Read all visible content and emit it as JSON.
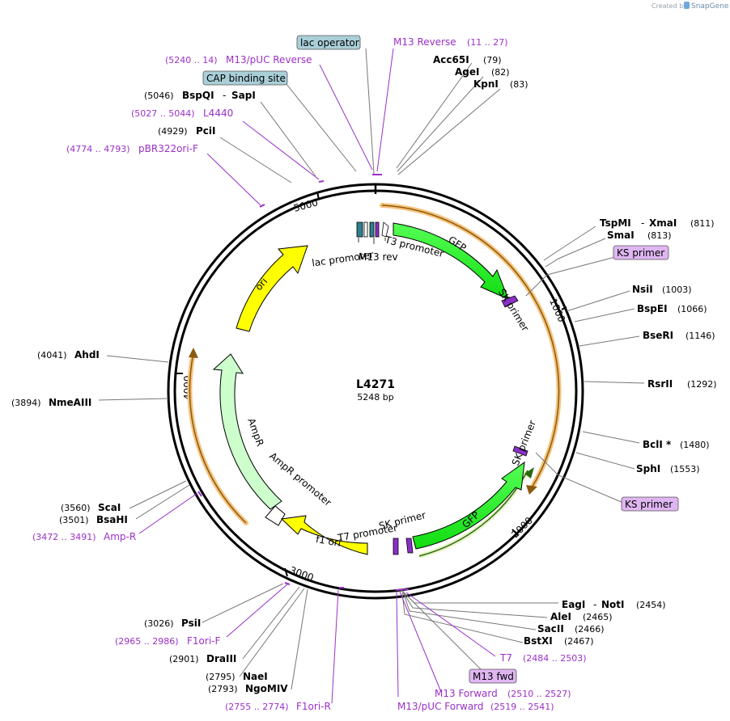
{
  "credit": {
    "prefix": "Created by",
    "brand": "SnapGene"
  },
  "plasmid": {
    "name": "L4271",
    "length_label": "5248 bp"
  },
  "ticks": [
    "1000",
    "2000",
    "3000",
    "4000",
    "5000"
  ],
  "enzymes": [
    {
      "name": "Acc65I",
      "pos": "(79)"
    },
    {
      "name": "AgeI",
      "pos": "(82)"
    },
    {
      "name": "KpnI",
      "pos": "(83)"
    },
    {
      "name": "TspMI",
      "name2": "XmaI",
      "pos": "(811)"
    },
    {
      "name": "SmaI",
      "pos": "(813)"
    },
    {
      "name": "NsiI",
      "pos": "(1003)"
    },
    {
      "name": "BspEI",
      "pos": "(1066)"
    },
    {
      "name": "BseRI",
      "pos": "(1146)"
    },
    {
      "name": "RsrII",
      "pos": "(1292)"
    },
    {
      "name": "BclI *",
      "pos": "(1480)"
    },
    {
      "name": "SphI",
      "pos": "(1553)"
    },
    {
      "name": "EagI",
      "name2": "NotI",
      "pos": "(2454)"
    },
    {
      "name": "AleI",
      "pos": "(2465)"
    },
    {
      "name": "SacII",
      "pos": "(2466)"
    },
    {
      "name": "BstXI",
      "pos": "(2467)"
    },
    {
      "name": "PsiI",
      "pos": "(3026)"
    },
    {
      "name": "DraIII",
      "pos": "(2901)"
    },
    {
      "name": "NaeI",
      "pos": "(2795)"
    },
    {
      "name": "NgoMIV",
      "pos": "(2793)"
    },
    {
      "name": "ScaI",
      "pos": "(3560)"
    },
    {
      "name": "BsaHI",
      "pos": "(3501)"
    },
    {
      "name": "NmeAIII",
      "pos": "(3894)"
    },
    {
      "name": "AhdI",
      "pos": "(4041)"
    },
    {
      "name": "PciI",
      "pos": "(4929)"
    },
    {
      "name": "BspQI",
      "name2": "SapI",
      "pos": "(5046)"
    }
  ],
  "primers": [
    {
      "name": "M13 Reverse",
      "range": "(11 .. 27)"
    },
    {
      "name": "M13/pUC Reverse",
      "range": "(5240 .. 14)"
    },
    {
      "name": "L4440",
      "range": "(5027 .. 5044)"
    },
    {
      "name": "pBR322ori-F",
      "range": "(4774 .. 4793)"
    },
    {
      "name": "Amp-R",
      "range": "(3472 .. 3491)"
    },
    {
      "name": "F1ori-F",
      "range": "(2965 .. 2986)"
    },
    {
      "name": "F1ori-R",
      "range": "(2755 .. 2774)"
    },
    {
      "name": "T7",
      "range": "(2484 .. 2503)"
    },
    {
      "name": "M13 Forward",
      "range": "(2510 .. 2527)"
    },
    {
      "name": "M13/pUC Forward",
      "range": "(2519 .. 2541)"
    }
  ],
  "boxed_labels": {
    "lac_operator": "lac operator",
    "cap_binding_site": "CAP binding site",
    "ks_primer_1": "KS primer",
    "ks_primer_2": "KS primer",
    "m13_fwd": "M13 fwd"
  },
  "features": {
    "lac_promoter": "lac promoter",
    "m13_rev": "M13 rev",
    "t3_promoter": "T3 promoter",
    "gfp_1": "GFP",
    "sk_primer_1": "SK primer",
    "sk_primer_2": "SK primer",
    "gfp_2": "GFP",
    "sk_primer_3": "SK primer",
    "t7_promoter": "T7 promoter",
    "f1_ori": "f1 ori",
    "ampr_promoter": "AmpR promoter",
    "ampr": "AmpR",
    "ori": "ori"
  },
  "colors": {
    "gfp": "#22ee22",
    "ori": "#ffff00",
    "ampr": "#ccffcc",
    "orf_band": "#f6c27a",
    "primer": "#9b30c8",
    "box_blue": "#a9cfd8",
    "box_purple": "#dfb6f2"
  }
}
